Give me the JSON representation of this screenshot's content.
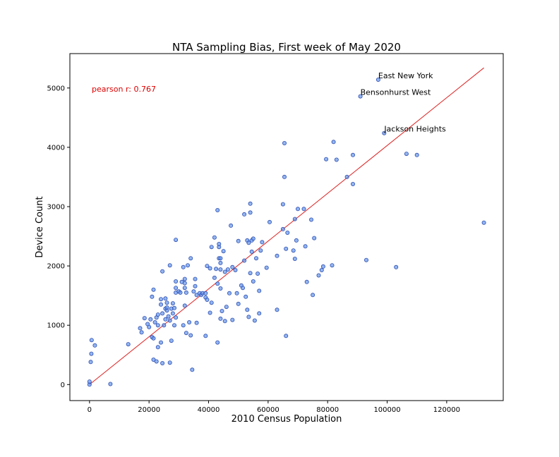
{
  "chart_data": {
    "type": "scatter",
    "title": "NTA Sampling Bias, First week of May 2020",
    "xlabel": "2010 Census Population",
    "ylabel": "Device Count",
    "xlim": [
      -6600,
      139000
    ],
    "ylim": [
      -270,
      5580
    ],
    "x_ticks": [
      0,
      20000,
      40000,
      60000,
      80000,
      100000,
      120000
    ],
    "y_ticks": [
      0,
      1000,
      2000,
      3000,
      4000,
      5000
    ],
    "grid": false,
    "annotation_color": "#dd0000",
    "point_color": "#6495ED",
    "point_edge_color": "#3050b0",
    "line_color": "#dd2222",
    "pearson_text": "pearson r: 0.767",
    "fit_line": {
      "x": [
        0,
        132500
      ],
      "y": [
        0,
        5340
      ]
    },
    "labels": [
      {
        "text": "East New York",
        "x": 97000,
        "y": 5140
      },
      {
        "text": "Bensonhurst West",
        "x": 91000,
        "y": 4860
      },
      {
        "text": "Jackson Heights",
        "x": 99000,
        "y": 4240
      }
    ],
    "points": [
      [
        0,
        0
      ],
      [
        0,
        50
      ],
      [
        400,
        380
      ],
      [
        600,
        520
      ],
      [
        700,
        750
      ],
      [
        1800,
        660
      ],
      [
        7000,
        10
      ],
      [
        13000,
        680
      ],
      [
        17000,
        950
      ],
      [
        17500,
        880
      ],
      [
        18500,
        1120
      ],
      [
        19500,
        1020
      ],
      [
        20000,
        970
      ],
      [
        20500,
        1100
      ],
      [
        21000,
        800
      ],
      [
        21000,
        1480
      ],
      [
        21500,
        780
      ],
      [
        21500,
        1600
      ],
      [
        21500,
        420
      ],
      [
        22000,
        1050
      ],
      [
        22500,
        1130
      ],
      [
        22500,
        390
      ],
      [
        23000,
        1000
      ],
      [
        23000,
        1180
      ],
      [
        23000,
        630
      ],
      [
        24000,
        1350
      ],
      [
        24000,
        1440
      ],
      [
        24000,
        710
      ],
      [
        24500,
        1910
      ],
      [
        24500,
        1200
      ],
      [
        24500,
        360
      ],
      [
        25000,
        1000
      ],
      [
        25500,
        1280
      ],
      [
        25500,
        1450
      ],
      [
        25500,
        1100
      ],
      [
        26000,
        1380
      ],
      [
        26000,
        1250
      ],
      [
        26000,
        1300
      ],
      [
        26500,
        1150
      ],
      [
        27000,
        1080
      ],
      [
        27000,
        2010
      ],
      [
        27000,
        370
      ],
      [
        27500,
        1280
      ],
      [
        27500,
        740
      ],
      [
        28000,
        1200
      ],
      [
        28000,
        1370
      ],
      [
        28500,
        1000
      ],
      [
        28500,
        1290
      ],
      [
        29000,
        1550
      ],
      [
        29000,
        1630
      ],
      [
        29000,
        1740
      ],
      [
        29000,
        1130
      ],
      [
        29000,
        2440
      ],
      [
        30000,
        1570
      ],
      [
        30500,
        1550
      ],
      [
        31000,
        1730
      ],
      [
        31500,
        1980
      ],
      [
        31500,
        1000
      ],
      [
        32000,
        1710
      ],
      [
        32000,
        1780
      ],
      [
        32000,
        1630
      ],
      [
        32000,
        1330
      ],
      [
        32500,
        1550
      ],
      [
        32500,
        870
      ],
      [
        33000,
        2010
      ],
      [
        33500,
        1050
      ],
      [
        34000,
        830
      ],
      [
        34000,
        2130
      ],
      [
        34500,
        250
      ],
      [
        35000,
        1570
      ],
      [
        35500,
        1660
      ],
      [
        35500,
        1780
      ],
      [
        36000,
        1040
      ],
      [
        36000,
        1510
      ],
      [
        37000,
        1540
      ],
      [
        37500,
        1510
      ],
      [
        38000,
        1540
      ],
      [
        39000,
        820
      ],
      [
        39000,
        1540
      ],
      [
        39000,
        1470
      ],
      [
        39500,
        1430
      ],
      [
        39500,
        2000
      ],
      [
        40500,
        1960
      ],
      [
        40500,
        1210
      ],
      [
        41000,
        2320
      ],
      [
        41000,
        1380
      ],
      [
        42000,
        1800
      ],
      [
        42000,
        2480
      ],
      [
        42500,
        1950
      ],
      [
        43000,
        710
      ],
      [
        43000,
        2940
      ],
      [
        43000,
        1700
      ],
      [
        43500,
        2320
      ],
      [
        43500,
        2370
      ],
      [
        43500,
        2130
      ],
      [
        44000,
        2130
      ],
      [
        44000,
        1940
      ],
      [
        44000,
        2050
      ],
      [
        44000,
        1620
      ],
      [
        44000,
        1110
      ],
      [
        44500,
        1240
      ],
      [
        45000,
        2250
      ],
      [
        45500,
        1070
      ],
      [
        45500,
        1900
      ],
      [
        46000,
        1310
      ],
      [
        46500,
        1940
      ],
      [
        47000,
        1540
      ],
      [
        47500,
        2680
      ],
      [
        48000,
        1090
      ],
      [
        48000,
        1980
      ],
      [
        49000,
        1930
      ],
      [
        49500,
        1540
      ],
      [
        50000,
        1360
      ],
      [
        50000,
        2420
      ],
      [
        51000,
        1670
      ],
      [
        51500,
        1630
      ],
      [
        52000,
        2090
      ],
      [
        52000,
        2870
      ],
      [
        52500,
        1480
      ],
      [
        53000,
        2430
      ],
      [
        53000,
        1260
      ],
      [
        53500,
        1140
      ],
      [
        53500,
        2390
      ],
      [
        54000,
        3050
      ],
      [
        54000,
        1880
      ],
      [
        54000,
        2900
      ],
      [
        54500,
        2430
      ],
      [
        54500,
        2240
      ],
      [
        55000,
        1740
      ],
      [
        55000,
        2460
      ],
      [
        55500,
        1080
      ],
      [
        56000,
        2130
      ],
      [
        56500,
        1870
      ],
      [
        57000,
        1200
      ],
      [
        57000,
        1580
      ],
      [
        57500,
        2260
      ],
      [
        58000,
        2400
      ],
      [
        59500,
        1970
      ],
      [
        60500,
        2740
      ],
      [
        63000,
        1260
      ],
      [
        63000,
        2170
      ],
      [
        65000,
        3040
      ],
      [
        65000,
        2620
      ],
      [
        65500,
        4070
      ],
      [
        65500,
        3500
      ],
      [
        66000,
        2290
      ],
      [
        66000,
        820
      ],
      [
        66500,
        2560
      ],
      [
        68500,
        2260
      ],
      [
        69000,
        2120
      ],
      [
        69000,
        2790
      ],
      [
        69500,
        2430
      ],
      [
        70000,
        2960
      ],
      [
        72000,
        2960
      ],
      [
        72500,
        2330
      ],
      [
        73000,
        1730
      ],
      [
        74500,
        2780
      ],
      [
        75000,
        1510
      ],
      [
        75500,
        2470
      ],
      [
        77000,
        1840
      ],
      [
        78000,
        1930
      ],
      [
        78500,
        1990
      ],
      [
        79500,
        3800
      ],
      [
        81500,
        2010
      ],
      [
        82000,
        4090
      ],
      [
        83000,
        3790
      ],
      [
        86500,
        3500
      ],
      [
        88500,
        3380
      ],
      [
        88500,
        3870
      ],
      [
        93000,
        2100
      ],
      [
        97000,
        5140
      ],
      [
        91000,
        4860
      ],
      [
        99000,
        4240
      ],
      [
        103000,
        1980
      ],
      [
        106500,
        3890
      ],
      [
        110000,
        3870
      ],
      [
        132500,
        2730
      ]
    ]
  }
}
